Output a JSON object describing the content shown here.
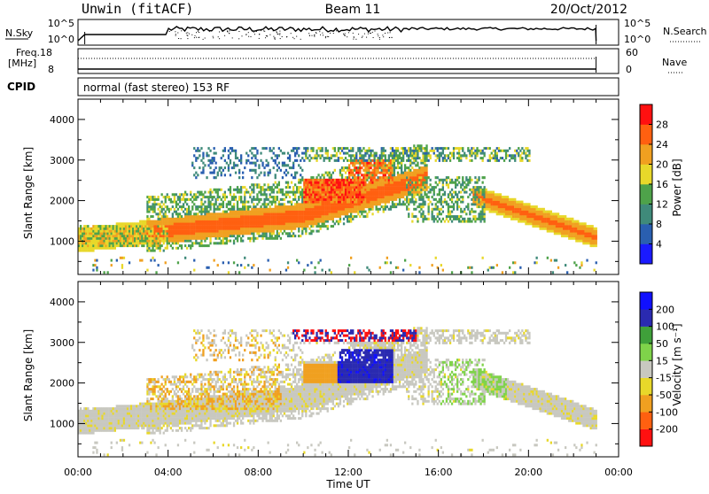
{
  "header": {
    "site": "Unwin (fitACF)",
    "beam": "Beam 11",
    "date": "20/Oct/2012"
  },
  "strip1": {
    "left_label": "N.Sky",
    "right_label": "N.Search",
    "left_ticks": [
      "10^5",
      "10^0"
    ],
    "right_ticks": [
      "10^5",
      "10^0"
    ]
  },
  "strip2": {
    "left_label_1": "Freq.",
    "left_label_2": "[MHz]",
    "right_label": "Nave",
    "left_ticks": [
      "18",
      "8"
    ],
    "right_ticks": [
      "60",
      "0"
    ]
  },
  "cpid": {
    "label": "CPID",
    "value": "normal (fast stereo) 153 RF"
  },
  "chart_data": [
    {
      "type": "heatmap",
      "name": "power",
      "ylabel": "Slant Range [km]",
      "y_ticks": [
        "1000",
        "2000",
        "3000",
        "4000"
      ],
      "ylim": [
        180,
        4500
      ],
      "colorbar_label": "Power [dB]",
      "colorbar_ticks": [
        "4",
        "8",
        "12",
        "16",
        "20",
        "24",
        "28"
      ],
      "colorbar_range": [
        0,
        32
      ],
      "colors": [
        "#1a1aff",
        "#2a5fb0",
        "#3f8a7a",
        "#4ea24a",
        "#e8d82a",
        "#f0a020",
        "#ff6010",
        "#ff1010"
      ]
    },
    {
      "type": "heatmap",
      "name": "velocity",
      "ylabel": "Slant Range [km]",
      "y_ticks": [
        "1000",
        "2000",
        "3000",
        "4000"
      ],
      "ylim": [
        180,
        4500
      ],
      "colorbar_label": "Velocity [m s⁻¹]",
      "colorbar_ticks": [
        "-200",
        "-100",
        "-50",
        "-15",
        "15",
        "50",
        "100",
        "200"
      ],
      "colors": [
        "#ff1010",
        "#ff6010",
        "#f0a020",
        "#e8d82a",
        "#c8c8c0",
        "#7fd34a",
        "#3fa03a",
        "#2a2ab0",
        "#1010ff"
      ]
    }
  ],
  "x_axis": {
    "label": "Time UT",
    "ticks": [
      "00:00",
      "04:00",
      "08:00",
      "12:00",
      "16:00",
      "20:00",
      "00:00"
    ],
    "range_hours": [
      0,
      24
    ],
    "data_end_hours": 23
  }
}
